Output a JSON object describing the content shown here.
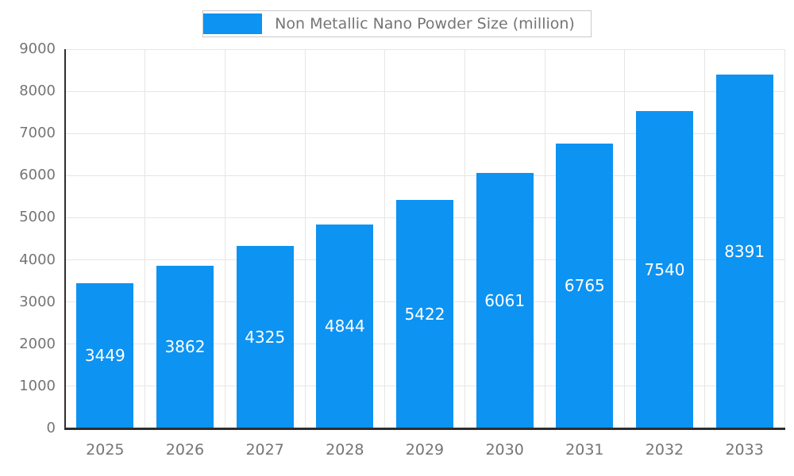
{
  "chart_data": {
    "type": "bar",
    "title": "Non Metallic Nano Powder Size (million)",
    "categories": [
      "2025",
      "2026",
      "2027",
      "2028",
      "2029",
      "2030",
      "2031",
      "2032",
      "2033"
    ],
    "values": [
      3449,
      3862,
      4325,
      4844,
      5422,
      6061,
      6765,
      7540,
      8391
    ],
    "xlabel": "",
    "ylabel": "",
    "ylim": [
      0,
      9000
    ],
    "ytick_step": 1000,
    "yticks": [
      0,
      1000,
      2000,
      3000,
      4000,
      5000,
      6000,
      7000,
      8000,
      9000
    ],
    "grid": true,
    "legend_position": "top-center",
    "value_labels": "inside-center",
    "colors": {
      "bar": "#0d93f2",
      "value_label": "#ffffff",
      "axis_text": "#757575",
      "grid_line": "#e6e6e6",
      "axis_line": "#2e2e2e",
      "legend_text": "#757575",
      "legend_border": "#c9c9c9",
      "background": "#ffffff"
    }
  }
}
